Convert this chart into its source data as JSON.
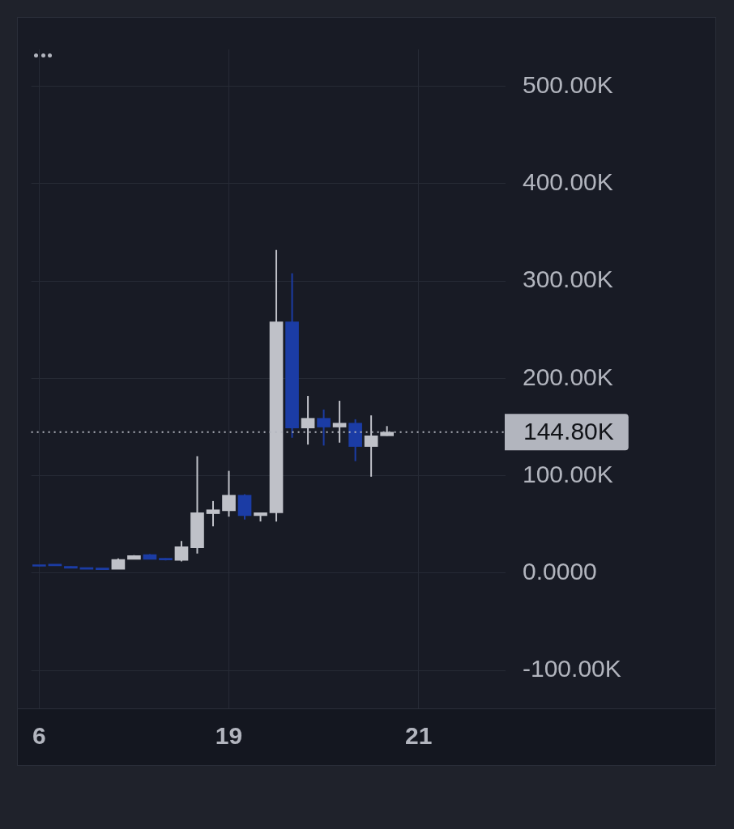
{
  "chart_data": {
    "type": "candlestick",
    "categories": [
      "6",
      null,
      null,
      null,
      null,
      null,
      null,
      null,
      null,
      null,
      null,
      null,
      "19",
      null,
      null,
      null,
      null,
      null,
      null,
      null,
      null,
      null,
      null,
      null,
      "21",
      null,
      null,
      null,
      null,
      null
    ],
    "ohlc": [
      [
        8000,
        8000,
        7000,
        7000
      ],
      [
        8500,
        8500,
        7500,
        7500
      ],
      [
        7000,
        7000,
        5000,
        5000
      ],
      [
        5000,
        5000,
        4000,
        4000
      ],
      [
        4500,
        4500,
        3500,
        3500
      ],
      [
        4000,
        15000,
        4000,
        14000
      ],
      [
        14000,
        18500,
        14000,
        18000
      ],
      [
        19000,
        19500,
        14000,
        14000
      ],
      [
        15000,
        15000,
        13000,
        13500
      ],
      [
        13000,
        33000,
        12000,
        27000
      ],
      [
        26000,
        120000,
        20000,
        62000
      ],
      [
        61000,
        74000,
        48000,
        65000
      ],
      [
        64000,
        105000,
        58000,
        80000
      ],
      [
        80000,
        81000,
        55000,
        59000
      ],
      [
        59000,
        62000,
        53000,
        62000
      ],
      [
        62000,
        332000,
        53000,
        258000
      ],
      [
        258000,
        308000,
        139000,
        149000
      ],
      [
        149000,
        182000,
        132000,
        159000
      ],
      [
        159000,
        168000,
        131000,
        150000
      ],
      [
        150000,
        177000,
        134000,
        154000
      ],
      [
        154000,
        158000,
        115000,
        130000
      ],
      [
        130000,
        162000,
        99000,
        141000
      ],
      [
        141000,
        151000,
        141000,
        144800
      ],
      null,
      null,
      null,
      null,
      null,
      null,
      null
    ],
    "colors": [
      "#1b3ca5",
      "#1b3ca5",
      "#1b3ca5",
      "#1b3ca5",
      "#1b3ca5",
      "#bfc1c8",
      "#bfc1c8",
      "#1b3ca5",
      "#1b3ca5",
      "#bfc1c8",
      "#bfc1c8",
      "#bfc1c8",
      "#bfc1c8",
      "#1b3ca5",
      "#bfc1c8",
      "#bfc1c8",
      "#1b3ca5",
      "#bfc1c8",
      "#1b3ca5",
      "#bfc1c8",
      "#1b3ca5",
      "#bfc1c8",
      "#bfc1c8",
      null,
      null,
      null,
      null,
      null,
      null,
      null
    ],
    "ylim": [
      -139000,
      538000
    ],
    "yticks": [
      {
        "value": -100000,
        "label": "-100.00K"
      },
      {
        "value": 0,
        "label": "0.0000"
      },
      {
        "value": 100000,
        "label": "100.00K"
      },
      {
        "value": 200000,
        "label": "200.00K"
      },
      {
        "value": 300000,
        "label": "300.00K"
      },
      {
        "value": 400000,
        "label": "400.00K"
      },
      {
        "value": 500000,
        "label": "500.00K"
      }
    ],
    "grid": true,
    "ref_lines": [
      {
        "axis": "y",
        "value": 144800,
        "label": "144.80K",
        "color": "#b2b5be",
        "line_style": "dotted"
      }
    ]
  }
}
